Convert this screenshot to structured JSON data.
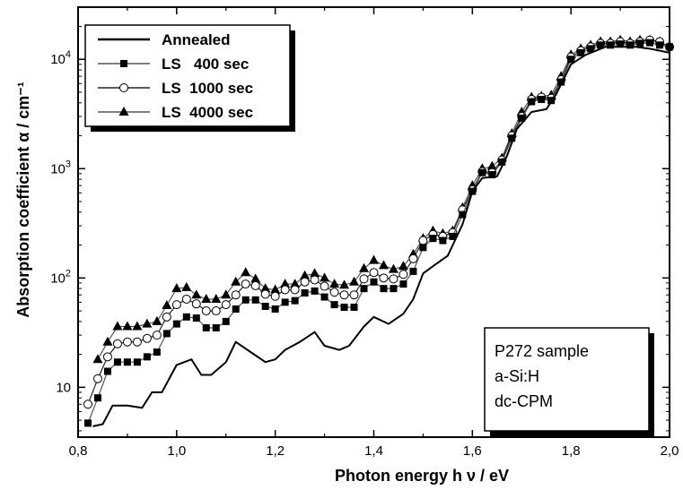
{
  "chart_data": {
    "type": "line",
    "xlabel": "Photon energy  h ν  / eV",
    "ylabel": "Absorption coefficient α / cm⁻¹",
    "xlim": [
      0.8,
      2.0
    ],
    "ylim": [
      3.5,
      30000
    ],
    "yscale": "log",
    "grid": false,
    "legend_position": "top-left",
    "x_ticks": [
      "0,8",
      "1,0",
      "1,2",
      "1,4",
      "1,6",
      "1,8",
      "2,0"
    ],
    "y_ticks": [
      {
        "base": "10",
        "exp": ""
      },
      {
        "base": "10",
        "exp": "2"
      },
      {
        "base": "10",
        "exp": "3"
      },
      {
        "base": "10",
        "exp": "4"
      }
    ],
    "series": [
      {
        "name": "Annealed",
        "marker": "none",
        "x": [
          0.83,
          0.85,
          0.87,
          0.9,
          0.93,
          0.95,
          0.97,
          1.0,
          1.03,
          1.05,
          1.07,
          1.1,
          1.12,
          1.15,
          1.18,
          1.2,
          1.22,
          1.25,
          1.28,
          1.3,
          1.33,
          1.35,
          1.38,
          1.4,
          1.43,
          1.46,
          1.48,
          1.5,
          1.52,
          1.55,
          1.58,
          1.6,
          1.62,
          1.65,
          1.67,
          1.69,
          1.72,
          1.75,
          1.77,
          1.8,
          1.83,
          1.87,
          1.9,
          1.93,
          1.96,
          2.0
        ],
        "y": [
          4.4,
          4.6,
          6.8,
          6.8,
          6.5,
          9,
          9,
          16,
          18,
          13,
          13,
          17,
          26,
          21,
          17,
          18,
          22,
          26,
          32,
          24,
          22,
          24,
          36,
          44,
          38,
          47,
          64,
          110,
          128,
          160,
          310,
          620,
          820,
          850,
          1300,
          2300,
          3300,
          3500,
          4800,
          9000,
          11000,
          13000,
          13000,
          13000,
          12500,
          11500
        ]
      },
      {
        "name": "LS   400 sec",
        "marker": "square",
        "x": [
          0.82,
          0.84,
          0.86,
          0.88,
          0.9,
          0.92,
          0.94,
          0.96,
          0.98,
          1.0,
          1.02,
          1.04,
          1.06,
          1.08,
          1.1,
          1.12,
          1.14,
          1.16,
          1.18,
          1.2,
          1.22,
          1.24,
          1.26,
          1.28,
          1.3,
          1.32,
          1.34,
          1.36,
          1.38,
          1.4,
          1.42,
          1.44,
          1.46,
          1.48,
          1.5,
          1.52,
          1.54,
          1.56,
          1.58,
          1.6,
          1.62,
          1.64,
          1.66,
          1.68,
          1.7,
          1.72,
          1.74,
          1.76,
          1.78,
          1.8,
          1.82,
          1.84,
          1.86,
          1.88,
          1.9,
          1.92,
          1.94,
          1.96,
          1.98,
          2.0
        ],
        "y": [
          4.7,
          8,
          14,
          17,
          17,
          17,
          19,
          21,
          31,
          38,
          44,
          43,
          35,
          35,
          40,
          52,
          63,
          63,
          55,
          52,
          60,
          62,
          73,
          76,
          67,
          57,
          54,
          54,
          80,
          92,
          80,
          80,
          88,
          115,
          190,
          230,
          220,
          240,
          380,
          620,
          920,
          880,
          1150,
          1900,
          2900,
          4100,
          4300,
          4200,
          6200,
          10000,
          11500,
          12500,
          13500,
          13500,
          13800,
          13500,
          14000,
          14200,
          13500,
          13000
        ]
      },
      {
        "name": "LS  1000 sec",
        "marker": "circle",
        "x": [
          0.82,
          0.84,
          0.86,
          0.88,
          0.9,
          0.92,
          0.94,
          0.96,
          0.98,
          1.0,
          1.02,
          1.04,
          1.06,
          1.08,
          1.1,
          1.12,
          1.14,
          1.16,
          1.18,
          1.2,
          1.22,
          1.24,
          1.26,
          1.28,
          1.3,
          1.32,
          1.34,
          1.36,
          1.38,
          1.4,
          1.42,
          1.44,
          1.46,
          1.48,
          1.5,
          1.52,
          1.54,
          1.56,
          1.58,
          1.6,
          1.62,
          1.64,
          1.66,
          1.68,
          1.7,
          1.72,
          1.74,
          1.76,
          1.78,
          1.8,
          1.82,
          1.84,
          1.86,
          1.88,
          1.9,
          1.92,
          1.94,
          1.96,
          1.98,
          2.0
        ],
        "y": [
          7,
          12,
          19,
          25,
          26,
          26,
          28,
          30,
          44,
          57,
          64,
          58,
          50,
          50,
          57,
          70,
          88,
          85,
          71,
          68,
          78,
          78,
          92,
          96,
          84,
          74,
          70,
          70,
          98,
          112,
          100,
          98,
          108,
          150,
          220,
          250,
          240,
          260,
          420,
          640,
          940,
          920,
          1200,
          2000,
          3000,
          4300,
          4500,
          4400,
          6500,
          10500,
          12000,
          13000,
          14000,
          14000,
          14500,
          14000,
          14500,
          15000,
          14500,
          13000
        ]
      },
      {
        "name": "LS  4000 sec",
        "marker": "triangle",
        "x": [
          0.84,
          0.86,
          0.88,
          0.9,
          0.92,
          0.94,
          0.96,
          0.98,
          1.0,
          1.02,
          1.04,
          1.06,
          1.08,
          1.1,
          1.12,
          1.14,
          1.16,
          1.18,
          1.2,
          1.22,
          1.24,
          1.26,
          1.28,
          1.3,
          1.32,
          1.34,
          1.36,
          1.38,
          1.4,
          1.42,
          1.44,
          1.46,
          1.48,
          1.5,
          1.52,
          1.54,
          1.56,
          1.58,
          1.6,
          1.62,
          1.64,
          1.66,
          1.68,
          1.7,
          1.72,
          1.74,
          1.76,
          1.78,
          1.8,
          1.82,
          1.84,
          1.86,
          1.88,
          1.9,
          1.92,
          1.94,
          1.96,
          1.98
        ],
        "y": [
          18,
          26,
          36,
          36,
          36,
          38,
          40,
          56,
          80,
          82,
          70,
          64,
          64,
          70,
          92,
          112,
          98,
          80,
          78,
          88,
          88,
          105,
          110,
          100,
          88,
          86,
          92,
          122,
          145,
          130,
          120,
          128,
          165,
          230,
          270,
          255,
          270,
          440,
          700,
          1000,
          1050,
          1250,
          2100,
          3300,
          4500,
          4600,
          4700,
          7000,
          11000,
          12500,
          13500,
          14500,
          14500,
          15000,
          14500,
          15000,
          15000,
          14500
        ]
      }
    ]
  },
  "annotation": [
    "P272 sample",
    "a-Si:H",
    "dc-CPM"
  ]
}
